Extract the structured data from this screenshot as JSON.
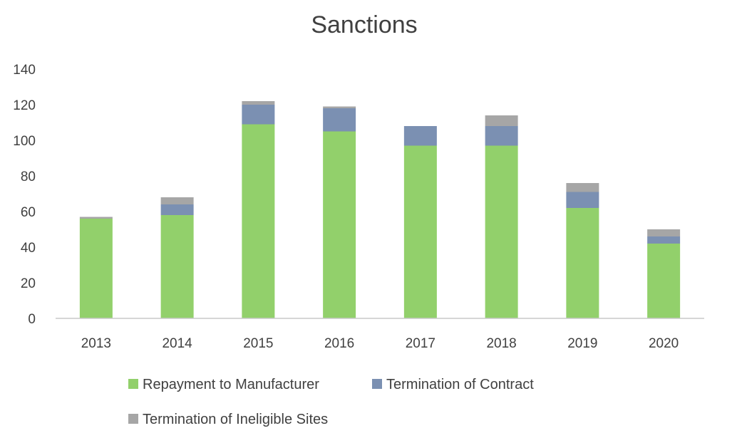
{
  "chart_data": {
    "type": "bar",
    "stacked": true,
    "title": "Sanctions",
    "xlabel": "",
    "ylabel": "",
    "categories": [
      "2013",
      "2014",
      "2015",
      "2016",
      "2017",
      "2018",
      "2019",
      "2020"
    ],
    "series": [
      {
        "name": "Repayment to Manufacturer",
        "color": "#92d06b",
        "values": [
          56,
          58,
          109,
          105,
          97,
          97,
          62,
          42
        ]
      },
      {
        "name": "Termination of Contract",
        "color": "#7b90b2",
        "values": [
          0,
          6,
          11,
          13,
          11,
          11,
          9,
          4
        ]
      },
      {
        "name": "Termination of Ineligible Sites",
        "color": "#a6a6a6",
        "values": [
          1,
          4,
          2,
          1,
          0,
          6,
          5,
          4
        ]
      }
    ],
    "ylim": [
      0,
      140
    ],
    "yticks": [
      0,
      20,
      40,
      60,
      80,
      100,
      120,
      140
    ],
    "grid": false,
    "legend_position": "bottom"
  }
}
